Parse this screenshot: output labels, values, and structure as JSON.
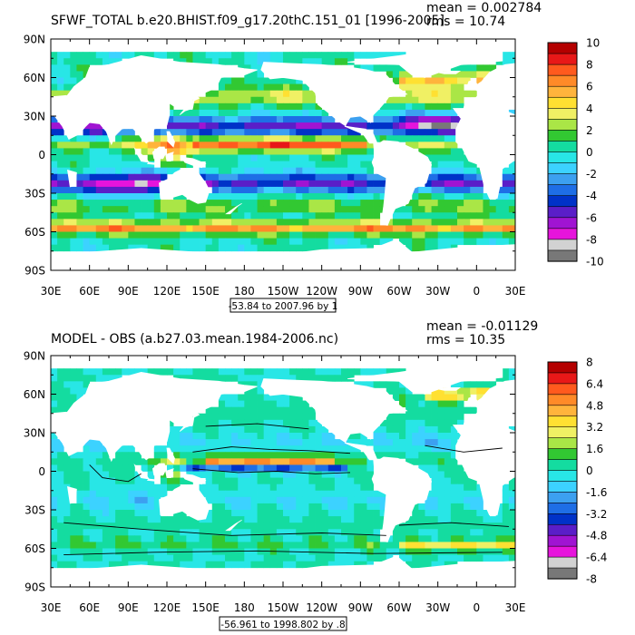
{
  "panels": [
    {
      "title": "SFWF_TOTAL b.e20.BHIST.f09_g17.20thC.151_01 [1996-2005]",
      "stats": {
        "mean": "mean = 0.002784",
        "rms": "rms = 10.74"
      },
      "range_label": "-53.84 to 2007.96 by 1",
      "contours": false
    },
    {
      "title": "MODEL - OBS (a.b27.03.mean.1984-2006.nc)",
      "stats": {
        "mean": "mean = -0.01129",
        "rms": "rms = 10.35"
      },
      "range_label": "-56.961 to 1998.802 by .8",
      "contours": true
    }
  ],
  "chart_data": [
    {
      "type": "heatmap",
      "title": "SFWF_TOTAL b.e20.BHIST.f09_g17.20thC.151_01 [1996-2005]",
      "x_ticks": [
        "30E",
        "60E",
        "90E",
        "120E",
        "150E",
        "180",
        "150W",
        "120W",
        "90W",
        "60W",
        "30W",
        "0",
        "30E"
      ],
      "y_ticks": [
        "90N",
        "60N",
        "30N",
        "0",
        "30S",
        "60S",
        "90S"
      ],
      "xlim": [
        30,
        390
      ],
      "ylim": [
        -90,
        90
      ],
      "colorbar": {
        "labels": [
          "10",
          "8",
          "6",
          "4",
          "2",
          "0",
          "-2",
          "-4",
          "-6",
          "-8",
          "-10"
        ],
        "colors": [
          "#b40000",
          "#e81818",
          "#ff5a1e",
          "#ff8a28",
          "#ffb43c",
          "#ffe032",
          "#f0f064",
          "#aae646",
          "#32c832",
          "#14dca0",
          "#28e6e6",
          "#3cd2ff",
          "#3ca0f0",
          "#1e6ee6",
          "#0032c8",
          "#5a1ec8",
          "#a014d2",
          "#e614dc",
          "#d2d2d2",
          "#787878"
        ]
      },
      "stats": {
        "mean": 0.002784,
        "rms": 10.74
      }
    },
    {
      "type": "heatmap",
      "title": "MODEL - OBS (a.b27.03.mean.1984-2006.nc)",
      "x_ticks": [
        "30E",
        "60E",
        "90E",
        "120E",
        "150E",
        "180",
        "150W",
        "120W",
        "90W",
        "60W",
        "30W",
        "0",
        "30E"
      ],
      "y_ticks": [
        "90N",
        "60N",
        "30N",
        "0",
        "30S",
        "60S",
        "90S"
      ],
      "xlim": [
        30,
        390
      ],
      "ylim": [
        -90,
        90
      ],
      "colorbar": {
        "labels": [
          "8",
          "6.4",
          "4.8",
          "3.2",
          "1.6",
          "0",
          "-1.6",
          "-3.2",
          "-4.8",
          "-6.4",
          "-8"
        ],
        "colors": [
          "#b40000",
          "#e81818",
          "#ff5a1e",
          "#ff8a28",
          "#ffb43c",
          "#ffe032",
          "#f0f064",
          "#aae646",
          "#32c832",
          "#14dca0",
          "#28e6e6",
          "#3cd2ff",
          "#3ca0f0",
          "#1e6ee6",
          "#0032c8",
          "#5a1ec8",
          "#a014d2",
          "#e614dc",
          "#d2d2d2",
          "#787878"
        ]
      },
      "stats": {
        "mean": -0.01129,
        "rms": 10.35
      }
    }
  ]
}
